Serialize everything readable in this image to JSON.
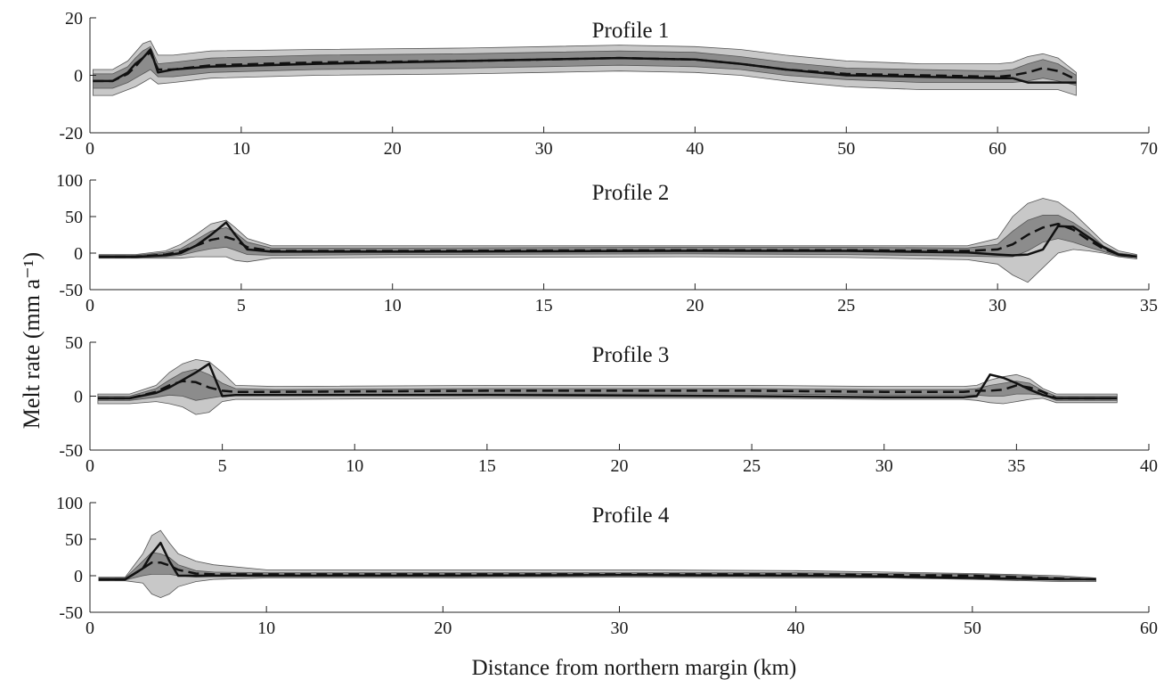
{
  "figure": {
    "ylabel": "Melt rate (mm a⁻¹)",
    "xlabel": "Distance from northern margin (km)"
  },
  "chart_data": [
    {
      "type": "area",
      "title": "Profile 1",
      "xlim": [
        0,
        70
      ],
      "ylim": [
        -20,
        20
      ],
      "xticks": [
        "0",
        "10",
        "20",
        "30",
        "40",
        "50",
        "60",
        "70"
      ],
      "yticks": [
        "-20",
        "0",
        "20"
      ],
      "x": [
        0.2,
        1.5,
        2.5,
        3.0,
        3.5,
        4.0,
        4.5,
        5.5,
        8,
        15,
        25,
        30,
        35,
        40,
        43,
        46,
        50,
        55,
        60,
        61,
        62,
        63,
        64,
        65.2
      ],
      "solid": [
        -2,
        -2,
        1,
        4,
        6,
        9,
        1,
        2,
        3,
        4,
        5,
        5.5,
        6,
        5.5,
        4,
        2,
        0,
        -0.5,
        -1,
        -1,
        -2.5,
        -2.5,
        -2.5,
        -2.5
      ],
      "dashed": [
        -2,
        -2,
        0.5,
        3,
        6,
        8,
        2,
        2,
        3.5,
        4.5,
        5,
        5.5,
        6,
        5.5,
        4,
        2,
        0.5,
        0,
        -0.5,
        0,
        1,
        2.5,
        1.5,
        -1.5
      ],
      "outer_low": [
        -7,
        -7,
        -5,
        -4,
        -2.5,
        -1,
        -3,
        -2.5,
        -1,
        0,
        0.5,
        1,
        1.5,
        1,
        0,
        -2,
        -4,
        -5,
        -5,
        -5,
        -5,
        -5,
        -5,
        -7
      ],
      "outer_high": [
        2,
        2,
        5,
        8,
        11,
        12,
        7,
        7,
        8.5,
        9,
        9.5,
        10,
        10.5,
        10,
        9,
        7,
        5,
        4,
        4,
        4.5,
        6.5,
        7.5,
        6,
        1
      ],
      "inner_low": [
        -4.5,
        -4.5,
        -2.5,
        -1,
        0.5,
        2,
        -0.5,
        -0.5,
        1,
        2,
        2.5,
        3,
        3.5,
        3,
        2,
        0,
        -1.5,
        -2.5,
        -2.5,
        -2.5,
        -2,
        -1,
        -2,
        -3.5
      ],
      "inner_high": [
        0.5,
        0.5,
        3,
        6,
        8.5,
        10,
        4,
        4.5,
        6,
        7,
        7.5,
        8,
        8.5,
        8,
        6.5,
        4.5,
        2.5,
        2,
        1.5,
        2,
        4,
        5.5,
        4,
        0
      ]
    },
    {
      "type": "area",
      "title": "Profile 2",
      "xlim": [
        0,
        35
      ],
      "ylim": [
        -50,
        100
      ],
      "xticks": [
        "0",
        "5",
        "10",
        "15",
        "20",
        "25",
        "30",
        "35"
      ],
      "yticks": [
        "-50",
        "0",
        "50",
        "100"
      ],
      "x": [
        0.3,
        1.5,
        2.5,
        3.0,
        3.5,
        4.0,
        4.5,
        4.8,
        5.2,
        6,
        10,
        20,
        25,
        29,
        30,
        30.5,
        31,
        31.5,
        32,
        32.5,
        33,
        33.5,
        34,
        34.6
      ],
      "solid": [
        -5,
        -5,
        -3,
        0,
        10,
        25,
        42,
        25,
        5,
        2,
        2,
        3,
        3,
        1,
        -2,
        -3,
        -2,
        5,
        37,
        36,
        22,
        8,
        -2,
        -5
      ],
      "dashed": [
        -5,
        -5,
        -2,
        2,
        10,
        18,
        22,
        18,
        8,
        3,
        3,
        4,
        4,
        3,
        5,
        12,
        25,
        35,
        40,
        32,
        18,
        6,
        -2,
        -5
      ],
      "outer_low": [
        -7,
        -7,
        -7,
        -7,
        -5,
        -5,
        -5,
        -10,
        -12,
        -7,
        -6,
        -5,
        -6,
        -9,
        -15,
        -30,
        -40,
        -20,
        0,
        5,
        3,
        0,
        -5,
        -8
      ],
      "outer_high": [
        -2,
        -2,
        3,
        12,
        25,
        40,
        45,
        35,
        20,
        10,
        10,
        10,
        10,
        10,
        20,
        50,
        68,
        75,
        70,
        55,
        35,
        15,
        3,
        -2
      ],
      "inner_low": [
        -6,
        -6,
        -5,
        -3,
        2,
        6,
        8,
        4,
        -2,
        -3,
        -2,
        -1,
        -2,
        -4,
        -5,
        -5,
        3,
        15,
        20,
        15,
        8,
        2,
        -4,
        -6
      ],
      "inner_high": [
        -3,
        -3,
        1,
        6,
        18,
        30,
        35,
        28,
        15,
        7,
        7,
        8,
        8,
        7,
        12,
        30,
        45,
        52,
        52,
        42,
        28,
        10,
        0,
        -3
      ]
    },
    {
      "type": "area",
      "title": "Profile 3",
      "xlim": [
        0,
        40
      ],
      "ylim": [
        -50,
        50
      ],
      "xticks": [
        "0",
        "5",
        "10",
        "15",
        "20",
        "25",
        "30",
        "35",
        "40"
      ],
      "yticks": [
        "-50",
        "0",
        "50"
      ],
      "x": [
        0.3,
        1.5,
        2.5,
        3.0,
        3.5,
        4.0,
        4.5,
        5.0,
        5.5,
        7,
        15,
        25,
        30,
        33,
        33.5,
        34,
        34.5,
        35,
        35.5,
        36,
        36.5,
        37,
        38.8
      ],
      "solid": [
        -2,
        -2,
        3,
        8,
        15,
        22,
        30,
        0,
        1,
        1,
        1,
        0,
        -1,
        -1,
        0,
        20,
        17,
        12,
        6,
        1,
        -2,
        -2,
        -2
      ],
      "dashed": [
        -2,
        -2,
        4,
        10,
        14,
        13,
        8,
        5,
        4,
        4,
        5,
        5,
        4,
        4,
        5,
        5,
        6,
        10,
        8,
        4,
        -2,
        -2,
        -2
      ],
      "outer_low": [
        -7,
        -7,
        -5,
        -7,
        -10,
        -17,
        -15,
        -5,
        -3,
        -3,
        -2,
        -2,
        -3,
        -3,
        -4,
        -6,
        -7,
        -5,
        -3,
        -2,
        -6,
        -6,
        -6
      ],
      "outer_high": [
        2,
        2,
        10,
        22,
        30,
        34,
        32,
        22,
        10,
        9,
        10,
        10,
        9,
        9,
        10,
        15,
        18,
        20,
        16,
        7,
        2,
        2,
        2
      ],
      "inner_low": [
        -4,
        -4,
        -1,
        1,
        0,
        -4,
        -2,
        0,
        1,
        1,
        2,
        2,
        1,
        1,
        1,
        0,
        0,
        2,
        2,
        1,
        -4,
        -4,
        -4
      ],
      "inner_high": [
        0,
        0,
        7,
        15,
        22,
        25,
        20,
        12,
        7,
        6,
        7,
        7,
        6,
        6,
        7,
        10,
        12,
        14,
        12,
        5,
        0,
        0,
        0
      ]
    },
    {
      "type": "area",
      "title": "Profile 4",
      "xlim": [
        0,
        60
      ],
      "ylim": [
        -50,
        100
      ],
      "xticks": [
        "0",
        "10",
        "20",
        "30",
        "40",
        "50",
        "60"
      ],
      "yticks": [
        "-50",
        "0",
        "50",
        "100"
      ],
      "x": [
        0.5,
        2,
        3,
        3.5,
        4,
        4.5,
        5,
        6,
        7,
        10,
        20,
        30,
        40,
        45,
        50,
        55,
        57
      ],
      "solid": [
        -5,
        -5,
        10,
        30,
        45,
        20,
        0,
        0,
        0,
        0,
        0,
        1,
        0,
        -1,
        -3,
        -5,
        -5
      ],
      "dashed": [
        -5,
        -5,
        10,
        18,
        18,
        14,
        8,
        3,
        2,
        2,
        2,
        2,
        2,
        1,
        0,
        -4,
        -5
      ],
      "outer_low": [
        -7,
        -7,
        -10,
        -25,
        -30,
        -25,
        -15,
        -8,
        -5,
        -3,
        -3,
        -2,
        -3,
        -3,
        -5,
        -8,
        -8
      ],
      "outer_high": [
        -2,
        -2,
        30,
        55,
        62,
        45,
        30,
        20,
        15,
        8,
        8,
        8,
        7,
        5,
        3,
        0,
        -3
      ],
      "inner_low": [
        -6,
        -6,
        0,
        2,
        2,
        2,
        0,
        -2,
        -1,
        -1,
        -1,
        0,
        -1,
        -1,
        -2,
        -5,
        -6
      ],
      "inner_high": [
        -3,
        -3,
        20,
        32,
        30,
        25,
        15,
        7,
        5,
        4,
        4,
        4,
        4,
        3,
        2,
        -2,
        -4
      ]
    }
  ]
}
